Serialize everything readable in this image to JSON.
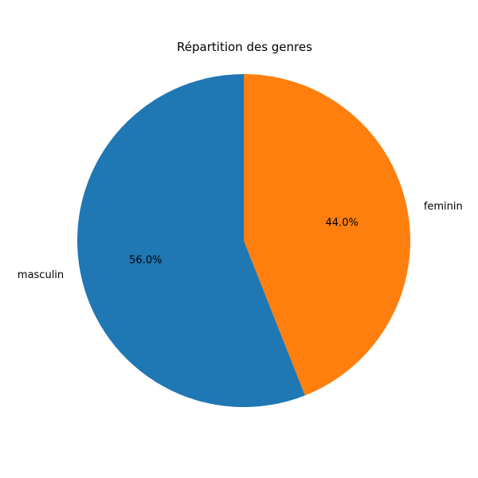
{
  "chart_data": {
    "type": "pie",
    "title": "Répartition des genres",
    "categories": [
      "masculin",
      "feminin"
    ],
    "values": [
      56.0,
      44.0
    ],
    "percent_labels": [
      "56.0%",
      "44.0%"
    ],
    "colors": [
      "#1f77b4",
      "#ff7f0e"
    ],
    "start_angle_deg": 90,
    "direction": "counterclockwise",
    "legend": "none"
  }
}
